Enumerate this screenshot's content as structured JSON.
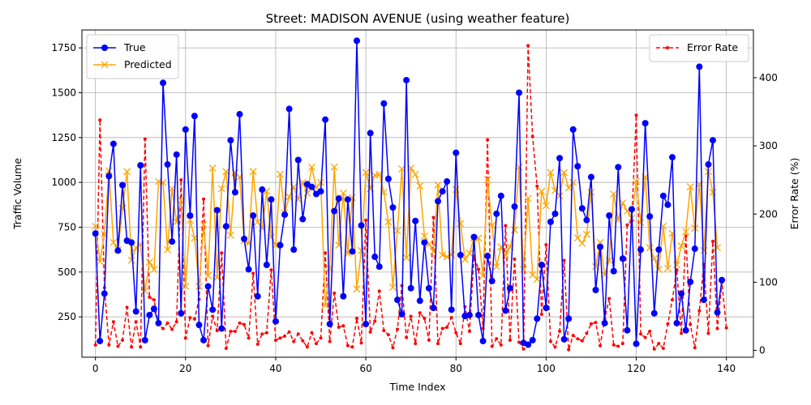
{
  "chart_data": {
    "type": "line",
    "title": "Street: MADISON AVENUE (using weather feature)",
    "xlabel": "Time Index",
    "ylabel": "Traffic Volume",
    "y2label": "Error Rate (%)",
    "xlim": [
      -3,
      146
    ],
    "ylim": [
      25,
      1850
    ],
    "y2lim": [
      -10,
      470
    ],
    "xticks": [
      0,
      20,
      40,
      60,
      80,
      100,
      120,
      140
    ],
    "yticks": [
      250,
      500,
      750,
      1000,
      1250,
      1500,
      1750
    ],
    "y2ticks": [
      0,
      100,
      200,
      300,
      400
    ],
    "grid": true,
    "legend_left": "upper-left",
    "legend_right": "upper-right",
    "series": [
      {
        "name": "True",
        "axis": "left",
        "color": "#0000ff",
        "marker": "circle",
        "values": [
          715,
          115,
          380,
          1035,
          1215,
          620,
          985,
          675,
          665,
          280,
          1095,
          120,
          260,
          295,
          215,
          1555,
          1100,
          670,
          1155,
          270,
          1295,
          815,
          1370,
          205,
          120,
          420,
          290,
          845,
          185,
          755,
          1235,
          945,
          1380,
          685,
          515,
          815,
          365,
          960,
          540,
          905,
          225,
          650,
          820,
          1410,
          625,
          1125,
          795,
          990,
          975,
          935,
          950,
          1350,
          210,
          840,
          910,
          365,
          905,
          615,
          1790,
          760,
          210,
          1275,
          585,
          530,
          1440,
          1020,
          860,
          345,
          265,
          1570,
          410,
          785,
          340,
          665,
          410,
          300,
          895,
          950,
          1005,
          290,
          1165,
          595,
          255,
          260,
          695,
          260,
          115,
          590,
          450,
          825,
          925,
          285,
          410,
          865,
          1500,
          105,
          95,
          120,
          240,
          540,
          300,
          780,
          825,
          1135,
          125,
          240,
          1295,
          1090,
          855,
          790,
          1030,
          400,
          640,
          215,
          815,
          505,
          1085,
          575,
          175,
          850,
          100,
          625,
          1330,
          810,
          270,
          625,
          925,
          875,
          1140,
          215,
          380,
          175,
          445,
          630,
          1645,
          345,
          1100,
          1235,
          275,
          455
        ]
      },
      {
        "name": "Predicted",
        "axis": "left",
        "color": "#ffa500",
        "marker": "x",
        "values": [
          755,
          560,
          710,
          1065,
          665,
          625,
          855,
          1060,
          565,
          635,
          655,
          395,
          555,
          515,
          1005,
          1000,
          625,
          965,
          780,
          900,
          420,
          790,
          690,
          420,
          765,
          480,
          1080,
          470,
          965,
          1060,
          705,
          1055,
          1030,
          675,
          660,
          1060,
          780,
          745,
          950,
          695,
          650,
          1045,
          830,
          920,
          975,
          905,
          1000,
          940,
          1085,
          970,
          1000,
          315,
          520,
          1085,
          650,
          940,
          605,
          915,
          405,
          620,
          1055,
          965,
          1040,
          1045,
          945,
          780,
          415,
          730,
          1075,
          580,
          1080,
          1045,
          980,
          700,
          655,
          615,
          985,
          595,
          585,
          595,
          960,
          770,
          570,
          605,
          690,
          690,
          480,
          1015,
          760,
          530,
          640,
          595,
          640,
          735,
          1085,
          515,
          910,
          485,
          460,
          950,
          870,
          1055,
          955,
          925,
          1055,
          970,
          1000,
          690,
          660,
          710,
          945,
          530,
          665,
          485,
          565,
          935,
          790,
          885,
          840,
          800,
          1005,
          775,
          1030,
          635,
          575,
          515,
          755,
          520,
          715,
          540,
          645,
          725,
          975,
          745,
          990,
          620,
          1060,
          945,
          635
        ]
      },
      {
        "name": "Error Rate",
        "axis": "right",
        "color": "#ff0000",
        "marker": "dot",
        "values": [
          8,
          338,
          92,
          8,
          42,
          6,
          15,
          63,
          5,
          42,
          5,
          310,
          78,
          74,
          38,
          32,
          40,
          31,
          42,
          250,
          18,
          48,
          46,
          75,
          222,
          7,
          50,
          29,
          143,
          3,
          28,
          28,
          40,
          38,
          18,
          113,
          9,
          24,
          26,
          118,
          15,
          18,
          21,
          27,
          13,
          24,
          14,
          5,
          26,
          10,
          18,
          143,
          13,
          84,
          34,
          36,
          7,
          5,
          47,
          11,
          191,
          27,
          43,
          87,
          29,
          23,
          4,
          31,
          95,
          19,
          50,
          10,
          55,
          47,
          15,
          195,
          10,
          32,
          34,
          48,
          26,
          10,
          64,
          28,
          138,
          119,
          32,
          309,
          6,
          17,
          8,
          183,
          15,
          134,
          12,
          2,
          447,
          314,
          241,
          53,
          155,
          13,
          5,
          28,
          132,
          1,
          22,
          17,
          14,
          25,
          39,
          41,
          7,
          46,
          76,
          8,
          6,
          10,
          184,
          190,
          345,
          24,
          19,
          28,
          2,
          10,
          3,
          39,
          74,
          118,
          25,
          168,
          38,
          4,
          58,
          126,
          25,
          160,
          32,
          100,
          33
        ]
      }
    ]
  }
}
